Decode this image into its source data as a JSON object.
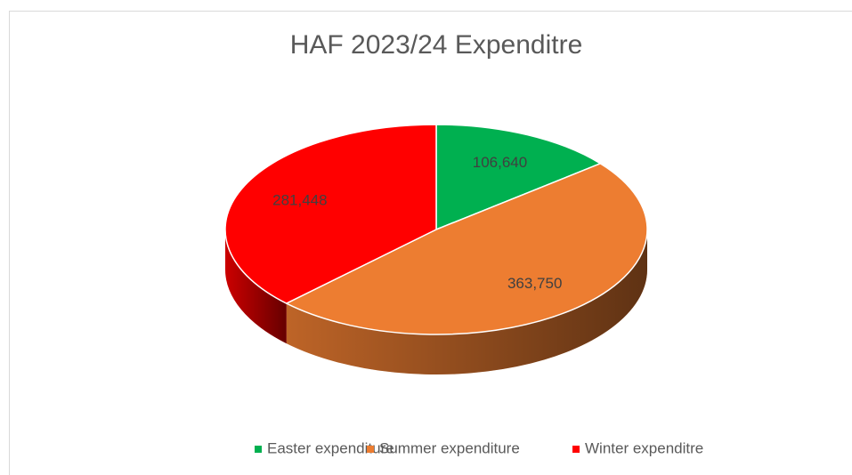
{
  "chart_data": {
    "type": "pie3d",
    "title": "HAF 2023/24 Expenditre",
    "categories": [
      "Easter expenditure",
      "Summer expenditure",
      "Winter expenditre"
    ],
    "values": [
      106640,
      363750,
      281448
    ],
    "value_labels": [
      "106,640",
      "363,750",
      "281,448"
    ],
    "colors": [
      "#00b050",
      "#ed7d31",
      "#ff0000"
    ],
    "legend": "bottom"
  }
}
